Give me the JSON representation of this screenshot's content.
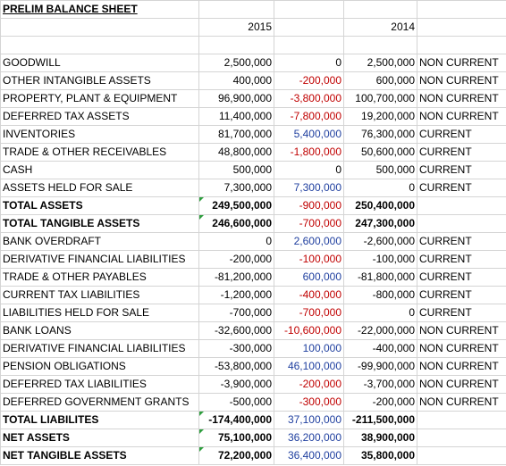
{
  "title": "PRELIM BALANCE SHEET",
  "years": [
    "2015",
    "2014"
  ],
  "rows": [
    {
      "name": "GOODWILL",
      "v2015": "2,500,000",
      "change": "0",
      "v2014": "2,500,000",
      "class": "NON CURRENT",
      "change_color": "black"
    },
    {
      "name": "OTHER INTANGIBLE ASSETS",
      "v2015": "400,000",
      "change": "-200,000",
      "v2014": "600,000",
      "class": "NON CURRENT",
      "change_color": "red"
    },
    {
      "name": "PROPERTY, PLANT & EQUIPMENT",
      "v2015": "96,900,000",
      "change": "-3,800,000",
      "v2014": "100,700,000",
      "class": "NON CURRENT",
      "change_color": "red"
    },
    {
      "name": "DEFERRED TAX ASSETS",
      "v2015": "11,400,000",
      "change": "-7,800,000",
      "v2014": "19,200,000",
      "class": "NON CURRENT",
      "change_color": "red"
    },
    {
      "name": "INVENTORIES",
      "v2015": "81,700,000",
      "change": "5,400,000",
      "v2014": "76,300,000",
      "class": "CURRENT",
      "change_color": "blue"
    },
    {
      "name": "TRADE & OTHER RECEIVABLES",
      "v2015": "48,800,000",
      "change": "-1,800,000",
      "v2014": "50,600,000",
      "class": "CURRENT",
      "change_color": "red"
    },
    {
      "name": "CASH",
      "v2015": "500,000",
      "change": "0",
      "v2014": "500,000",
      "class": "CURRENT",
      "change_color": "black"
    },
    {
      "name": "ASSETS HELD FOR SALE",
      "v2015": "7,300,000",
      "change": "7,300,000",
      "v2014": "0",
      "class": "CURRENT",
      "change_color": "blue"
    },
    {
      "name": "TOTAL ASSETS",
      "v2015": "249,500,000",
      "change": "-900,000",
      "v2014": "250,400,000",
      "class": "",
      "change_color": "red",
      "bold": true,
      "flag": true
    },
    {
      "name": "TOTAL TANGIBLE ASSETS",
      "v2015": "246,600,000",
      "change": "-700,000",
      "v2014": "247,300,000",
      "class": "",
      "change_color": "red",
      "bold": true,
      "flag": true
    },
    {
      "name": "BANK OVERDRAFT",
      "v2015": "0",
      "change": "2,600,000",
      "v2014": "-2,600,000",
      "class": "CURRENT",
      "change_color": "blue"
    },
    {
      "name": "DERIVATIVE FINANCIAL LIABILITIES",
      "v2015": "-200,000",
      "change": "-100,000",
      "v2014": "-100,000",
      "class": "CURRENT",
      "change_color": "red"
    },
    {
      "name": "TRADE & OTHER PAYABLES",
      "v2015": "-81,200,000",
      "change": "600,000",
      "v2014": "-81,800,000",
      "class": "CURRENT",
      "change_color": "blue"
    },
    {
      "name": "CURRENT TAX LIABILITIES",
      "v2015": "-1,200,000",
      "change": "-400,000",
      "v2014": "-800,000",
      "class": "CURRENT",
      "change_color": "red"
    },
    {
      "name": "LIABILITIES HELD FOR SALE",
      "v2015": "-700,000",
      "change": "-700,000",
      "v2014": "0",
      "class": "CURRENT",
      "change_color": "red"
    },
    {
      "name": "BANK LOANS",
      "v2015": "-32,600,000",
      "change": "-10,600,000",
      "v2014": "-22,000,000",
      "class": "NON CURRENT",
      "change_color": "red"
    },
    {
      "name": "DERIVATIVE FINANCIAL LIABILITIES",
      "v2015": "-300,000",
      "change": "100,000",
      "v2014": "-400,000",
      "class": "NON CURRENT",
      "change_color": "blue"
    },
    {
      "name": "PENSION OBLIGATIONS",
      "v2015": "-53,800,000",
      "change": "46,100,000",
      "v2014": "-99,900,000",
      "class": "NON CURRENT",
      "change_color": "blue"
    },
    {
      "name": "DEFERRED TAX LIABILITIES",
      "v2015": "-3,900,000",
      "change": "-200,000",
      "v2014": "-3,700,000",
      "class": "NON CURRENT",
      "change_color": "red"
    },
    {
      "name": "DEFERRED GOVERNMENT GRANTS",
      "v2015": "-500,000",
      "change": "-300,000",
      "v2014": "-200,000",
      "class": "NON CURRENT",
      "change_color": "red"
    },
    {
      "name": "TOTAL LIABILITES",
      "v2015": "-174,400,000",
      "change": "37,100,000",
      "v2014": "-211,500,000",
      "class": "",
      "change_color": "blue",
      "bold": true,
      "flag": true
    },
    {
      "name": "NET ASSETS",
      "v2015": "75,100,000",
      "change": "36,200,000",
      "v2014": "38,900,000",
      "class": "",
      "change_color": "blue",
      "bold": true,
      "flag": true
    },
    {
      "name": "NET TANGIBLE ASSETS",
      "v2015": "72,200,000",
      "change": "36,400,000",
      "v2014": "35,800,000",
      "class": "",
      "change_color": "blue",
      "bold": true,
      "flag": true
    }
  ]
}
